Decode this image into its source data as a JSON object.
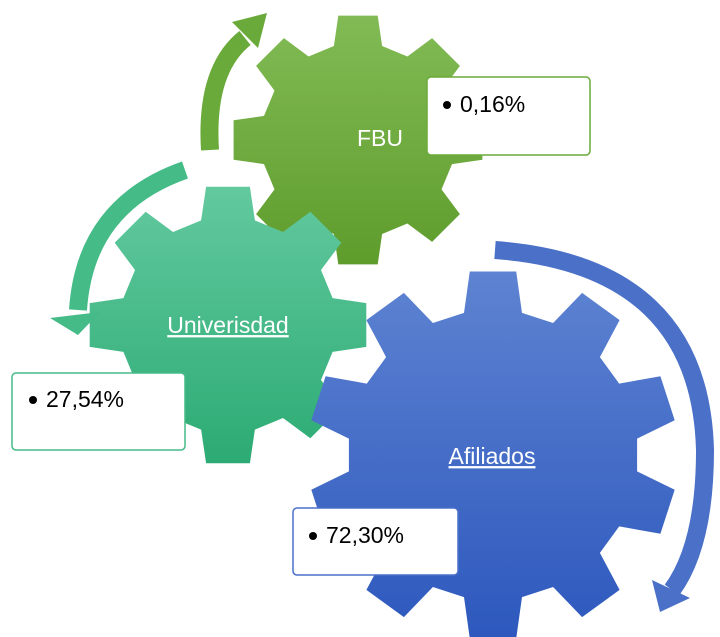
{
  "nodes": [
    {
      "label": "FBU",
      "value": "0,16%"
    },
    {
      "label": "Univerisdad",
      "value": "27,54%"
    },
    {
      "label": "Afiliados",
      "value": "72,30%"
    }
  ]
}
